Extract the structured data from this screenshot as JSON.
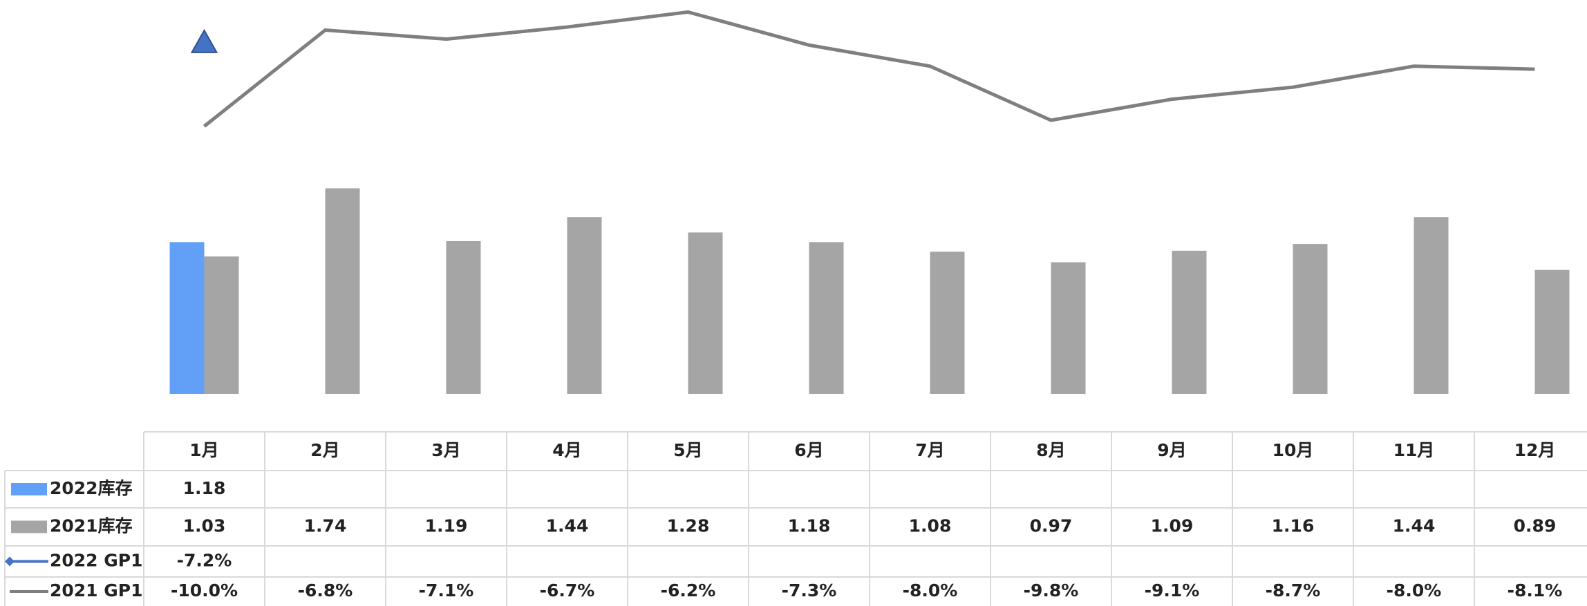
{
  "chart_data": {
    "type": "bar-line",
    "categories": [
      "1月",
      "2月",
      "3月",
      "4月",
      "5月",
      "6月",
      "7月",
      "8月",
      "9月",
      "10月",
      "11月",
      "12月"
    ],
    "series": [
      {
        "name": "2022库存",
        "type": "bar",
        "color": "#62a0f8",
        "values": [
          1.18,
          null,
          null,
          null,
          null,
          null,
          null,
          null,
          null,
          null,
          null,
          null
        ]
      },
      {
        "name": "2021库存",
        "type": "bar",
        "color": "#a5a5a5",
        "values": [
          1.03,
          1.74,
          1.19,
          1.44,
          1.28,
          1.18,
          1.08,
          0.97,
          1.09,
          1.16,
          1.44,
          0.89
        ]
      },
      {
        "name": "2022 GP1",
        "type": "line",
        "axis": "y2",
        "color": "#4472c4",
        "values": [
          -7.2,
          null,
          null,
          null,
          null,
          null,
          null,
          null,
          null,
          null,
          null,
          null
        ],
        "value_labels": [
          "-7.2%",
          null,
          null,
          null,
          null,
          null,
          null,
          null,
          null,
          null,
          null,
          null
        ]
      },
      {
        "name": "2021 GP1",
        "type": "line",
        "axis": "y2",
        "color": "#7f7f7f",
        "values": [
          -10.0,
          -6.8,
          -7.1,
          -6.7,
          -6.2,
          -7.3,
          -8.0,
          -9.8,
          -9.1,
          -8.7,
          -8.0,
          -8.1
        ],
        "value_labels": [
          "-10.0%",
          "-6.8%",
          "-7.1%",
          "-6.7%",
          "-6.2%",
          "-7.3%",
          "-8.0%",
          "-9.8%",
          "-9.1%",
          "-8.7%",
          "-8.0%",
          "-8.1%"
        ]
      }
    ],
    "ylim": [
      -0.4,
      3.7
    ],
    "y2lim": [
      -18.9,
      -5.8
    ],
    "data_table": true
  }
}
